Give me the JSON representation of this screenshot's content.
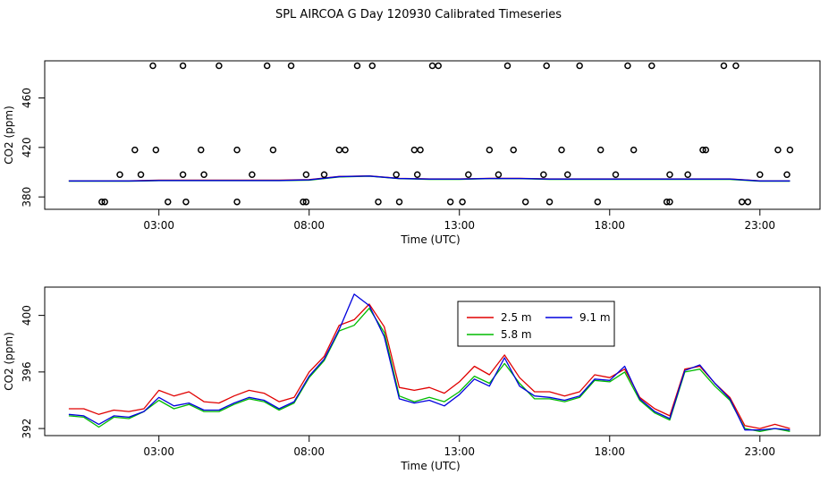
{
  "title": "SPL AIRCOA G  Day 120930  Calibrated Timeseries",
  "legend": [
    {
      "label": "2.5 m",
      "color": "#e00000"
    },
    {
      "label": "5.8 m",
      "color": "#00bb00"
    },
    {
      "label": "9.1 m",
      "color": "#0000dd"
    }
  ],
  "chart_data": [
    {
      "type": "scatter",
      "title": "",
      "xlabel": "Time (UTC)",
      "ylabel": "CO2 (ppm)",
      "xlim": [
        -0.8,
        25.0
      ],
      "ylim": [
        370,
        490
      ],
      "xticks": [
        3,
        8,
        13,
        18,
        23
      ],
      "xtick_labels": [
        "03:00",
        "08:00",
        "13:00",
        "18:00",
        "23:00"
      ],
      "yticks": [
        380,
        420,
        460
      ],
      "ytick_labels": [
        "380",
        "420",
        "460"
      ],
      "grid": false,
      "points_x": [
        1.1,
        1.7,
        2.2,
        2.8,
        3.3,
        3.8,
        4.4,
        5.0,
        5.6,
        6.1,
        6.8,
        7.4,
        7.9,
        8.5,
        9.0,
        9.6,
        10.3,
        10.9,
        11.5,
        12.1,
        12.7,
        13.3,
        14.0,
        14.6,
        15.2,
        15.8,
        16.4,
        17.0,
        17.6,
        18.2,
        18.8,
        19.4,
        20.0,
        20.6,
        21.2,
        21.8,
        22.4,
        23.0,
        23.6,
        1.2,
        2.4,
        2.9,
        3.8,
        3.9,
        4.5,
        5.6,
        6.6,
        7.8,
        7.9,
        9.2,
        10.1,
        11.0,
        11.6,
        11.7,
        12.3,
        13.1,
        14.3,
        14.8,
        15.9,
        16.0,
        16.6,
        17.7,
        18.6,
        19.9,
        20.0,
        21.1,
        22.2,
        22.6,
        23.9,
        24.0
      ],
      "points_y": [
        376,
        398,
        418,
        486,
        376,
        398,
        418,
        486,
        376,
        398,
        418,
        486,
        376,
        398,
        418,
        486,
        376,
        398,
        418,
        486,
        376,
        398,
        418,
        486,
        376,
        398,
        418,
        486,
        376,
        398,
        418,
        486,
        376,
        398,
        418,
        486,
        376,
        398,
        418,
        376,
        398,
        418,
        486,
        376,
        398,
        418,
        486,
        376,
        398,
        418,
        486,
        376,
        398,
        418,
        486,
        376,
        398,
        418,
        486,
        376,
        398,
        418,
        486,
        376,
        398,
        418,
        486,
        376,
        398,
        418
      ],
      "series": [
        {
          "name": "2.5 m",
          "x": [
            0,
            1,
            2,
            3,
            4,
            5,
            6,
            7,
            8,
            9,
            10,
            11,
            12,
            13,
            14,
            15,
            16,
            17,
            18,
            19,
            20,
            21,
            22,
            23,
            24
          ],
          "values": [
            393,
            393,
            393,
            393.5,
            393.5,
            393.5,
            393.5,
            393.5,
            394,
            396.5,
            397,
            395,
            394.5,
            394.5,
            395,
            395,
            394.5,
            394.5,
            394.5,
            394.5,
            394.5,
            394.5,
            394.5,
            393,
            393
          ]
        },
        {
          "name": "5.8 m",
          "x": [
            0,
            1,
            2,
            3,
            4,
            5,
            6,
            7,
            8,
            9,
            10,
            11,
            12,
            13,
            14,
            15,
            16,
            17,
            18,
            19,
            20,
            21,
            22,
            23,
            24
          ],
          "values": [
            392.8,
            392.8,
            392.8,
            393.2,
            393.2,
            393.2,
            393.2,
            393.2,
            393.6,
            396.2,
            396.8,
            394.8,
            394.2,
            394.2,
            394.8,
            394.8,
            394.2,
            394.2,
            394.2,
            394.2,
            394.2,
            394.2,
            394.2,
            392.8,
            392.8
          ]
        },
        {
          "name": "9.1 m",
          "x": [
            0,
            1,
            2,
            3,
            4,
            5,
            6,
            7,
            8,
            9,
            10,
            11,
            12,
            13,
            14,
            15,
            16,
            17,
            18,
            19,
            20,
            21,
            22,
            23,
            24
          ],
          "values": [
            392.9,
            392.9,
            392.9,
            393.3,
            393.3,
            393.3,
            393.3,
            393.3,
            393.8,
            396.4,
            396.9,
            394.9,
            394.4,
            394.4,
            394.9,
            394.9,
            394.4,
            394.4,
            394.4,
            394.4,
            394.4,
            394.4,
            394.4,
            392.9,
            392.9
          ]
        }
      ]
    },
    {
      "type": "line",
      "title": "",
      "xlabel": "Time (UTC)",
      "ylabel": "CO2 (ppm)",
      "xlim": [
        -0.8,
        25.0
      ],
      "ylim": [
        391.5,
        402
      ],
      "xticks": [
        3,
        8,
        13,
        18,
        23
      ],
      "xtick_labels": [
        "03:00",
        "08:00",
        "13:00",
        "18:00",
        "23:00"
      ],
      "yticks": [
        392,
        396,
        400
      ],
      "ytick_labels": [
        "392",
        "396",
        "400"
      ],
      "grid": false,
      "legend_position": "top-center",
      "series": [
        {
          "name": "2.5 m",
          "color": "#e00000",
          "x": [
            0.0,
            0.5,
            1.0,
            1.5,
            2.0,
            2.5,
            3.0,
            3.5,
            4.0,
            4.5,
            5.0,
            5.5,
            6.0,
            6.5,
            7.0,
            7.5,
            8.0,
            8.5,
            9.0,
            9.5,
            10.0,
            10.5,
            11.0,
            11.5,
            12.0,
            12.5,
            13.0,
            13.5,
            14.0,
            14.5,
            15.0,
            15.5,
            16.0,
            16.5,
            17.0,
            17.5,
            18.0,
            18.5,
            19.0,
            19.5,
            20.0,
            20.5,
            21.0,
            21.5,
            22.0,
            22.5,
            23.0,
            23.5,
            24.0
          ],
          "values": [
            393.4,
            393.4,
            393.0,
            393.3,
            393.2,
            393.4,
            394.7,
            394.3,
            394.6,
            393.9,
            393.8,
            394.3,
            394.7,
            394.5,
            393.9,
            394.2,
            396.0,
            397.1,
            399.3,
            399.7,
            400.8,
            399.2,
            394.9,
            394.7,
            394.9,
            394.5,
            395.3,
            396.4,
            395.8,
            397.2,
            395.6,
            394.6,
            394.6,
            394.3,
            394.6,
            395.8,
            395.6,
            396.2,
            394.2,
            393.4,
            392.9,
            396.2,
            396.4,
            395.2,
            394.2,
            392.2,
            392.0,
            392.3,
            392.0
          ]
        },
        {
          "name": "5.8 m",
          "color": "#00bb00",
          "x": [
            0.0,
            0.5,
            1.0,
            1.5,
            2.0,
            2.5,
            3.0,
            3.5,
            4.0,
            4.5,
            5.0,
            5.5,
            6.0,
            6.5,
            7.0,
            7.5,
            8.0,
            8.5,
            9.0,
            9.5,
            10.0,
            10.5,
            11.0,
            11.5,
            12.0,
            12.5,
            13.0,
            13.5,
            14.0,
            14.5,
            15.0,
            15.5,
            16.0,
            16.5,
            17.0,
            17.5,
            18.0,
            18.5,
            19.0,
            19.5,
            20.0,
            20.5,
            21.0,
            21.5,
            22.0,
            22.5,
            23.0,
            23.5,
            24.0
          ],
          "values": [
            392.9,
            392.8,
            392.1,
            392.8,
            392.7,
            393.2,
            394.0,
            393.4,
            393.7,
            393.2,
            393.2,
            393.7,
            394.1,
            393.9,
            393.3,
            393.8,
            395.6,
            396.8,
            398.9,
            399.3,
            400.5,
            398.8,
            394.3,
            393.9,
            394.2,
            393.9,
            394.6,
            395.7,
            395.2,
            396.6,
            395.2,
            394.1,
            394.1,
            393.9,
            394.2,
            395.4,
            395.3,
            396.0,
            394.0,
            393.1,
            392.6,
            396.0,
            396.2,
            395.0,
            394.0,
            392.0,
            391.8,
            392.0,
            391.8
          ]
        },
        {
          "name": "9.1 m",
          "color": "#0000dd",
          "x": [
            0.0,
            0.5,
            1.0,
            1.5,
            2.0,
            2.5,
            3.0,
            3.5,
            4.0,
            4.5,
            5.0,
            5.5,
            6.0,
            6.5,
            7.0,
            7.5,
            8.0,
            8.5,
            9.0,
            9.5,
            10.0,
            10.5,
            11.0,
            11.5,
            12.0,
            12.5,
            13.0,
            13.5,
            14.0,
            14.5,
            15.0,
            15.5,
            16.0,
            16.5,
            17.0,
            17.5,
            18.0,
            18.5,
            19.0,
            19.5,
            20.0,
            20.5,
            21.0,
            21.5,
            22.0,
            22.5,
            23.0,
            23.5,
            24.0
          ],
          "values": [
            393.0,
            392.9,
            392.3,
            392.9,
            392.8,
            393.2,
            394.2,
            393.6,
            393.8,
            393.3,
            393.3,
            393.8,
            394.2,
            394.0,
            393.4,
            393.9,
            395.7,
            396.9,
            399.0,
            401.5,
            400.7,
            398.5,
            394.1,
            393.8,
            394.0,
            393.6,
            394.4,
            395.5,
            395.0,
            397.0,
            395.0,
            394.3,
            394.2,
            394.0,
            394.3,
            395.5,
            395.4,
            396.4,
            394.1,
            393.2,
            392.7,
            396.1,
            396.5,
            395.2,
            394.1,
            391.9,
            391.9,
            392.0,
            391.9
          ]
        }
      ]
    }
  ]
}
